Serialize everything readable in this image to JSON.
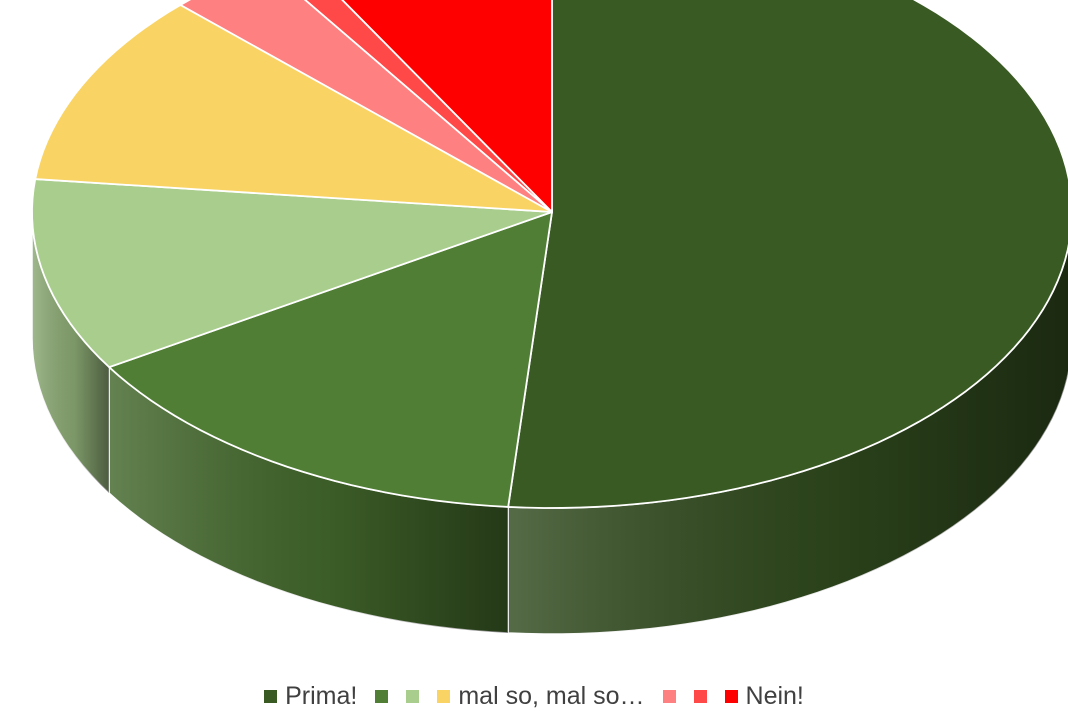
{
  "chart_data": {
    "type": "pie",
    "title": "",
    "categories": [
      "Prima!",
      "",
      "",
      "mal so, mal so…",
      "",
      "",
      "Nein!"
    ],
    "values": [
      53.5,
      15.5,
      11.0,
      11.0,
      3.5,
      1.2,
      8.5
    ],
    "colors": [
      "#3A5A24",
      "#507E34",
      "#A8CD8C",
      "#F9D464",
      "#FF8080",
      "#FF4848",
      "#FF0000"
    ],
    "legend_position": "bottom",
    "style": "3d"
  }
}
